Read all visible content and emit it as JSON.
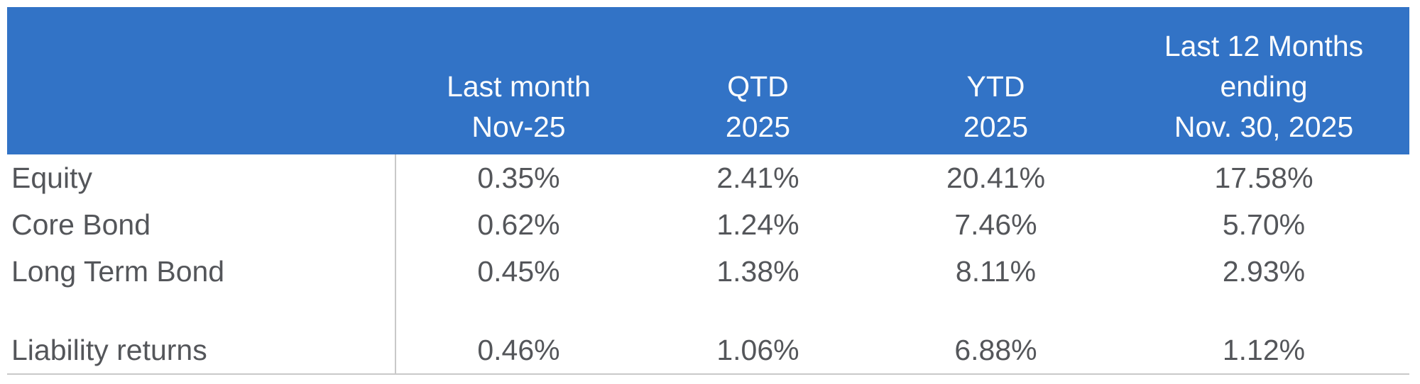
{
  "chart_data": {
    "type": "table",
    "columns": [
      "",
      "Last month Nov-25",
      "QTD 2025",
      "YTD 2025",
      "Last 12 Months ending Nov. 30, 2025"
    ],
    "rows": [
      [
        "Equity",
        "0.35%",
        "2.41%",
        "20.41%",
        "17.58%"
      ],
      [
        "Core Bond",
        "0.62%",
        "1.24%",
        "7.46%",
        "5.70%"
      ],
      [
        "Long Term Bond",
        "0.45%",
        "1.38%",
        "8.11%",
        "2.93%"
      ],
      [
        "Liability returns",
        "0.46%",
        "1.06%",
        "6.88%",
        "1.12%"
      ]
    ]
  },
  "table": {
    "header": {
      "columns": [
        {
          "line1": "Last month",
          "line2": "Nov-25"
        },
        {
          "line1": "QTD",
          "line2": "2025"
        },
        {
          "line1": "YTD",
          "line2": "2025"
        },
        {
          "line1": "Last 12 Months",
          "line2": "ending",
          "line3": "Nov. 30, 2025"
        }
      ]
    },
    "rows": [
      {
        "label": "Equity",
        "values": [
          "0.35%",
          "2.41%",
          "20.41%",
          "17.58%"
        ]
      },
      {
        "label": "Core Bond",
        "values": [
          "0.62%",
          "1.24%",
          "7.46%",
          "5.70%"
        ]
      },
      {
        "label": "Long Term Bond",
        "values": [
          "0.45%",
          "1.38%",
          "8.11%",
          "2.93%"
        ]
      },
      {
        "label": "Liability returns",
        "values": [
          "0.46%",
          "1.06%",
          "6.88%",
          "1.12%"
        ]
      }
    ],
    "colors": {
      "header_bg": "#3273C6",
      "header_text": "#FFFFFF",
      "body_text": "#54565A",
      "divider": "#C9C9C9"
    }
  }
}
